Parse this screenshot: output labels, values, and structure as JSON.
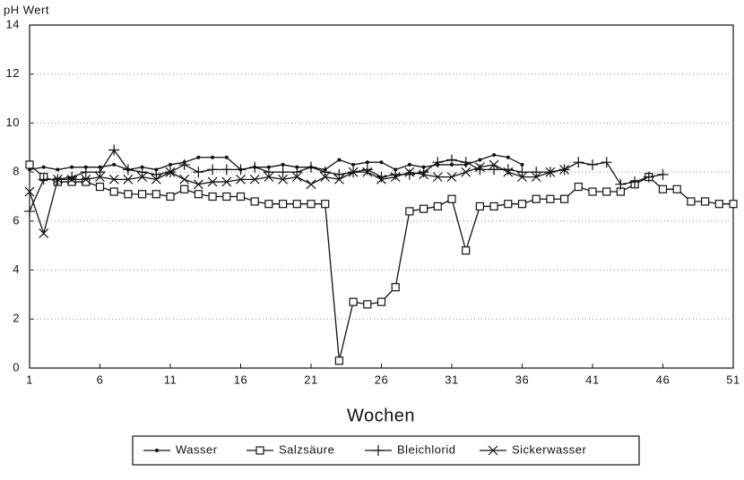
{
  "chart_data": {
    "type": "line",
    "y_label": "pH Wert",
    "x_label": "Wochen",
    "x": [
      1,
      2,
      3,
      4,
      5,
      6,
      7,
      8,
      9,
      10,
      11,
      12,
      13,
      14,
      15,
      16,
      17,
      18,
      19,
      20,
      21,
      22,
      23,
      24,
      25,
      26,
      27,
      28,
      29,
      30,
      31,
      32,
      33,
      34,
      35,
      36,
      37,
      38,
      39,
      40,
      41,
      42,
      43,
      44,
      45,
      46,
      47,
      48,
      49,
      50,
      51
    ],
    "xlim": [
      1,
      51
    ],
    "xticks": [
      1,
      6,
      11,
      16,
      21,
      26,
      31,
      36,
      41,
      46,
      51
    ],
    "ylim": [
      0,
      14
    ],
    "yticks": [
      0,
      2,
      4,
      6,
      8,
      10,
      12,
      14
    ],
    "grid": true,
    "series": [
      {
        "name": "Wasser",
        "color": "#111111",
        "marker": "dot",
        "values": [
          8.1,
          8.2,
          8.1,
          8.2,
          8.2,
          8.2,
          8.3,
          8.1,
          8.2,
          8.1,
          8.3,
          8.4,
          8.6,
          8.6,
          8.6,
          8.1,
          8.2,
          8.2,
          8.3,
          8.2,
          8.2,
          8.1,
          8.5,
          8.3,
          8.4,
          8.4,
          8.1,
          8.3,
          8.2,
          8.3,
          8.3,
          8.3,
          8.5,
          8.7,
          8.6,
          8.3,
          null,
          null,
          null,
          null,
          null,
          null,
          null,
          null,
          null,
          null,
          null,
          null,
          null,
          null,
          null
        ]
      },
      {
        "name": "Salzsäure",
        "color": "#111111",
        "marker": "square",
        "values": [
          8.3,
          7.8,
          7.6,
          7.6,
          7.6,
          7.4,
          7.2,
          7.1,
          7.1,
          7.1,
          7.0,
          7.3,
          7.1,
          7.0,
          7.0,
          7.0,
          6.8,
          6.7,
          6.7,
          6.7,
          6.7,
          6.7,
          0.3,
          2.7,
          2.6,
          2.7,
          3.3,
          6.4,
          6.5,
          6.6,
          6.9,
          4.8,
          6.6,
          6.6,
          6.7,
          6.7,
          6.9,
          6.9,
          6.9,
          7.4,
          7.2,
          7.2,
          7.2,
          7.5,
          7.8,
          7.3,
          7.3,
          6.8,
          6.8,
          6.7,
          6.7
        ]
      },
      {
        "name": "Bleichlorid",
        "color": "#111111",
        "marker": "plus",
        "values": [
          6.4,
          7.7,
          7.7,
          7.8,
          8.0,
          8.0,
          8.9,
          8.1,
          8.0,
          7.9,
          8.0,
          8.3,
          8.0,
          8.1,
          8.1,
          8.1,
          8.2,
          8.0,
          8.0,
          8.0,
          8.2,
          8.0,
          7.9,
          8.0,
          8.1,
          7.8,
          7.9,
          7.9,
          8.0,
          8.4,
          8.5,
          8.4,
          8.1,
          8.1,
          8.1,
          8.0,
          8.0,
          8.0,
          8.1,
          8.4,
          8.3,
          8.4,
          7.5,
          7.6,
          7.8,
          7.9,
          null,
          null,
          null,
          null,
          null
        ]
      },
      {
        "name": "Sickerwasser",
        "color": "#111111",
        "marker": "cross",
        "values": [
          7.2,
          5.5,
          7.7,
          7.7,
          7.7,
          7.8,
          7.7,
          7.7,
          7.8,
          7.7,
          8.0,
          7.7,
          7.5,
          7.6,
          7.6,
          7.7,
          7.7,
          7.8,
          7.7,
          7.8,
          7.5,
          7.8,
          7.7,
          8.0,
          8.0,
          7.7,
          7.8,
          8.0,
          7.9,
          7.8,
          7.8,
          8.0,
          8.2,
          8.3,
          8.0,
          7.8,
          7.8,
          8.0,
          8.1,
          null,
          null,
          null,
          null,
          null,
          null,
          null,
          null,
          null,
          null,
          null,
          null
        ]
      }
    ]
  }
}
